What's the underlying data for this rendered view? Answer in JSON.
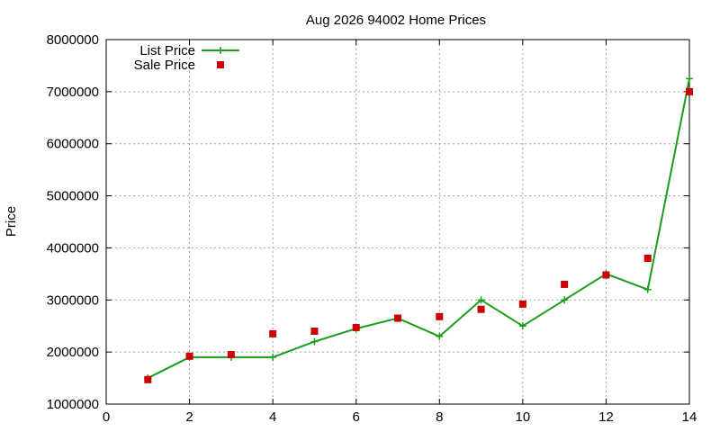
{
  "chart_data": {
    "type": "line",
    "title": "Aug 2026 94002 Home Prices",
    "xlabel": "",
    "ylabel": "Price",
    "xlim": [
      0,
      14
    ],
    "ylim": [
      1000000,
      8000000
    ],
    "xticks": [
      "0",
      "2",
      "4",
      "6",
      "8",
      "10",
      "12",
      "14"
    ],
    "yticks": [
      "1000000",
      "2000000",
      "3000000",
      "4000000",
      "5000000",
      "6000000",
      "7000000",
      "8000000"
    ],
    "grid": true,
    "legend_position": "top-left",
    "series": [
      {
        "name": "List Price",
        "style": "line+cross",
        "color": "#1a9e1a",
        "x": [
          1,
          2,
          3,
          4,
          5,
          6,
          7,
          8,
          9,
          10,
          11,
          12,
          13,
          14
        ],
        "values": [
          1500000,
          1900000,
          1900000,
          1900000,
          2200000,
          2450000,
          2650000,
          2300000,
          3000000,
          2500000,
          3000000,
          3500000,
          3200000,
          7250000
        ]
      },
      {
        "name": "Sale Price",
        "style": "square",
        "color": "#cc0000",
        "x": [
          1,
          2,
          3,
          4,
          5,
          6,
          7,
          8,
          9,
          10,
          11,
          12,
          13,
          14
        ],
        "values": [
          1470000,
          1920000,
          1950000,
          2350000,
          2400000,
          2470000,
          2650000,
          2680000,
          2820000,
          2920000,
          3300000,
          3480000,
          3800000,
          7000000
        ]
      }
    ]
  }
}
